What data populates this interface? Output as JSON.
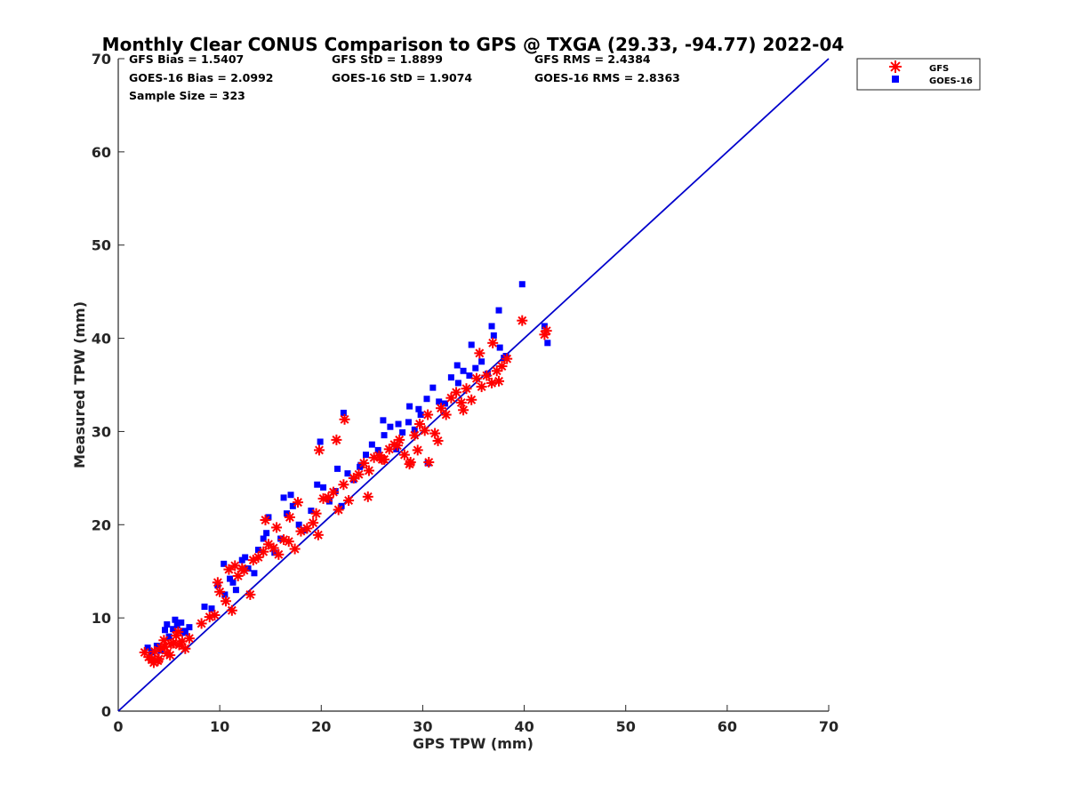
{
  "chart_data": {
    "type": "scatter",
    "title": "Monthly Clear CONUS Comparison to GPS @ TXGA (29.33, -94.77) 2022-04",
    "xlabel": "GPS TPW (mm)",
    "ylabel": "Measured TPW (mm)",
    "xlim": [
      0,
      70
    ],
    "ylim": [
      0,
      70
    ],
    "xticks": [
      "0",
      "10",
      "20",
      "30",
      "40",
      "50",
      "60",
      "70"
    ],
    "yticks": [
      "0",
      "10",
      "20",
      "30",
      "40",
      "50",
      "60",
      "70"
    ],
    "grid": false,
    "legend_position": "outside-top-right",
    "stats": [
      "GFS Bias = 1.5407",
      "GFS StD = 1.8899",
      "GFS RMS = 2.4384",
      "GOES-16 Bias = 2.0992",
      "GOES-16 StD = 1.9074",
      "GOES-16 RMS = 2.8363",
      "Sample Size = 323"
    ],
    "reference_line": {
      "x": [
        0,
        70
      ],
      "y": [
        0,
        70
      ],
      "color": "#0000cc"
    },
    "series": [
      {
        "name": "GFS",
        "marker": "asterisk",
        "color": "#ff0000",
        "x": [
          2.6,
          3.0,
          3.3,
          3.6,
          3.9,
          4.2,
          4.5,
          4.8,
          5.1,
          5.4,
          5.7,
          6.0,
          6.3,
          6.6,
          7.0,
          3.5,
          4.0,
          4.6,
          5.2,
          5.9,
          8.2,
          9.0,
          9.5,
          10.0,
          10.6,
          11.2,
          11.8,
          12.4,
          13.0,
          9.8,
          10.9,
          11.5,
          12.2,
          13.3,
          13.8,
          14.3,
          14.8,
          15.3,
          15.8,
          16.3,
          16.8,
          17.4,
          18.0,
          18.6,
          19.2,
          19.7,
          14.5,
          15.6,
          16.9,
          17.7,
          19.5,
          20.2,
          20.7,
          21.2,
          21.7,
          22.2,
          22.7,
          23.2,
          23.7,
          24.2,
          24.7,
          25.2,
          25.7,
          26.2,
          26.7,
          27.2,
          27.7,
          28.2,
          28.7,
          29.2,
          29.7,
          30.2,
          19.8,
          21.5,
          22.3,
          24.6,
          26.0,
          27.5,
          28.8,
          29.5,
          30.6,
          31.2,
          31.8,
          32.3,
          32.8,
          33.3,
          33.8,
          34.3,
          34.8,
          35.3,
          35.8,
          36.3,
          36.8,
          37.3,
          37.8,
          38.3,
          34.0,
          35.6,
          36.9,
          37.5,
          39.8,
          42.2,
          42.0,
          30.5,
          31.5
        ],
        "y": [
          6.3,
          5.8,
          5.5,
          6.4,
          5.4,
          6.8,
          7.6,
          6.2,
          6.0,
          7.3,
          8.1,
          7.1,
          7.5,
          6.7,
          7.8,
          5.2,
          5.6,
          6.9,
          7.2,
          8.5,
          9.4,
          10.1,
          10.3,
          12.8,
          11.8,
          10.8,
          14.5,
          15.1,
          12.5,
          13.8,
          15.2,
          15.6,
          15.3,
          16.2,
          16.5,
          17.1,
          17.9,
          17.5,
          16.8,
          18.4,
          18.2,
          17.4,
          19.3,
          19.6,
          20.2,
          18.9,
          20.5,
          19.7,
          20.8,
          22.4,
          21.2,
          22.8,
          22.9,
          23.5,
          21.6,
          24.3,
          22.6,
          25.0,
          25.4,
          26.6,
          25.8,
          27.2,
          27.4,
          27.0,
          28.1,
          28.6,
          29.1,
          27.5,
          26.5,
          29.6,
          30.8,
          30.1,
          28.0,
          29.1,
          31.3,
          23.0,
          27.0,
          28.5,
          26.7,
          28.0,
          26.7,
          29.8,
          32.5,
          31.8,
          33.6,
          34.2,
          33.1,
          34.6,
          33.4,
          35.7,
          34.8,
          36.0,
          35.2,
          36.5,
          37.0,
          37.8,
          32.3,
          38.4,
          39.5,
          35.4,
          41.9,
          40.8,
          40.4,
          31.8,
          29.0
        ]
      },
      {
        "name": "GOES-16",
        "marker": "square",
        "color": "#0000ff",
        "x": [
          2.9,
          3.3,
          3.8,
          4.2,
          4.6,
          5.0,
          5.4,
          5.8,
          6.2,
          6.6,
          7.0,
          4.8,
          5.6,
          6.4,
          8.5,
          9.2,
          9.8,
          10.4,
          11.0,
          11.6,
          12.2,
          12.8,
          13.4,
          10.5,
          11.3,
          12.5,
          13.8,
          14.3,
          14.8,
          15.4,
          16.0,
          16.6,
          17.2,
          17.8,
          18.4,
          19.0,
          14.6,
          16.3,
          17.0,
          19.6,
          20.2,
          20.8,
          21.4,
          22.0,
          22.6,
          23.2,
          23.8,
          24.4,
          25.0,
          25.6,
          26.2,
          26.8,
          27.4,
          28.0,
          28.6,
          29.2,
          29.8,
          19.9,
          21.6,
          22.2,
          23.9,
          26.1,
          27.6,
          28.7,
          29.6,
          30.4,
          31.0,
          31.6,
          32.2,
          32.8,
          33.4,
          34.0,
          34.6,
          35.2,
          35.8,
          36.4,
          37.0,
          37.6,
          38.2,
          33.5,
          34.8,
          36.8,
          37.5,
          38.0,
          39.8,
          42.0,
          42.3,
          30.5
        ],
        "y": [
          6.8,
          6.3,
          7.0,
          6.5,
          8.7,
          8.0,
          8.8,
          9.2,
          9.5,
          8.4,
          9.0,
          9.3,
          9.8,
          8.6,
          11.2,
          11.0,
          13.5,
          15.8,
          14.2,
          13.0,
          16.2,
          15.3,
          14.8,
          12.5,
          13.8,
          16.5,
          17.3,
          18.5,
          20.8,
          17.0,
          18.5,
          21.2,
          22.0,
          20.0,
          19.4,
          21.5,
          19.1,
          22.9,
          23.2,
          24.3,
          24.0,
          22.5,
          23.6,
          22.0,
          25.5,
          24.8,
          26.2,
          27.5,
          28.6,
          28.0,
          29.6,
          30.5,
          28.1,
          29.9,
          31.0,
          30.2,
          31.8,
          28.9,
          26.0,
          32.0,
          26.4,
          31.2,
          30.8,
          32.7,
          32.4,
          33.5,
          34.7,
          33.2,
          33.0,
          35.8,
          37.1,
          36.5,
          36.0,
          36.8,
          37.5,
          36.2,
          40.3,
          39.0,
          38.1,
          35.2,
          39.3,
          41.3,
          43.0,
          37.9,
          45.8,
          41.3,
          39.5,
          26.6
        ]
      }
    ]
  }
}
